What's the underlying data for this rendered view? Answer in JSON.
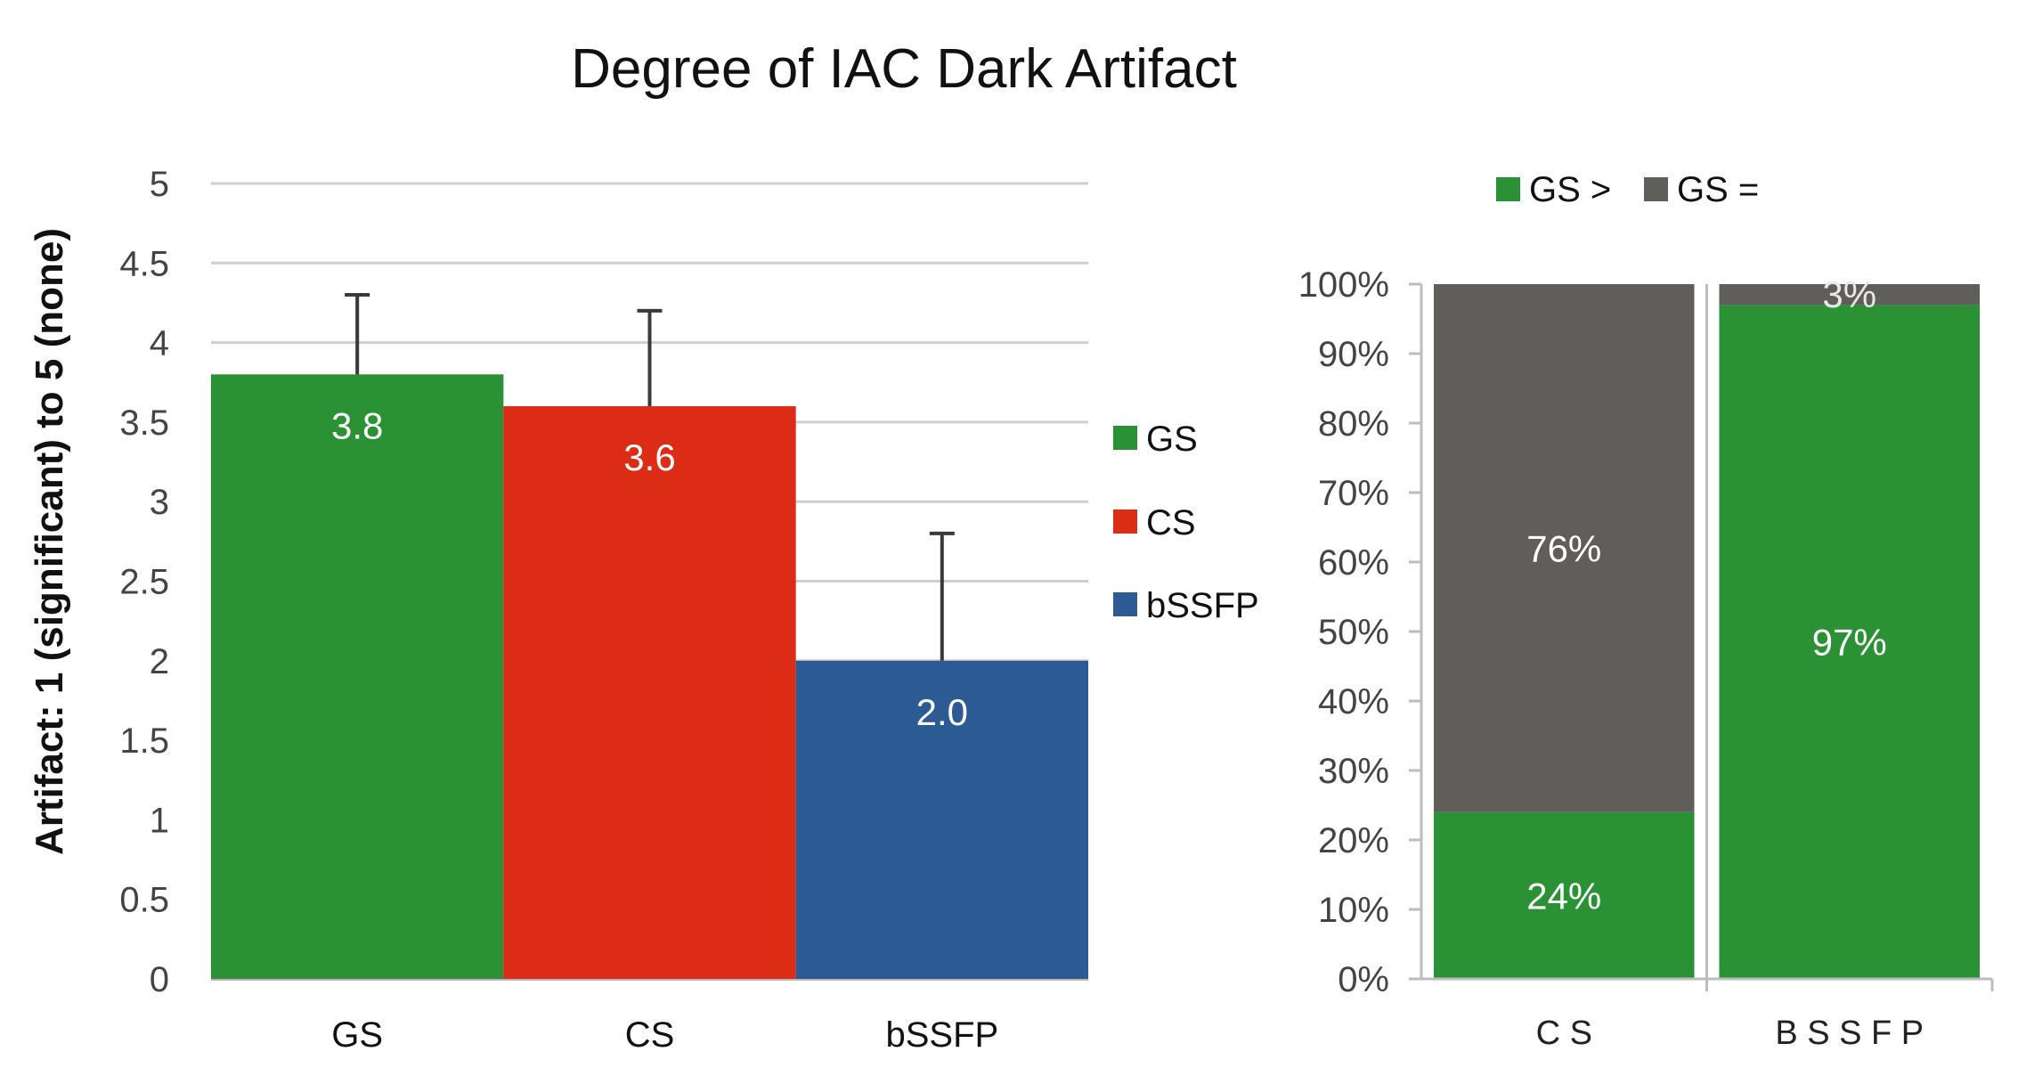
{
  "chart_data": [
    {
      "type": "bar",
      "title": "Degree of IAC Dark Artifact",
      "ylabel": "Artifact: 1 (significant) to 5 (none)",
      "xlabel": "",
      "categories": [
        "GS",
        "CS",
        "bSSFP"
      ],
      "values": [
        3.8,
        3.6,
        2.0
      ],
      "value_labels": [
        "3.8",
        "3.6",
        "2.0"
      ],
      "error_upper": [
        4.3,
        4.2,
        2.8
      ],
      "colors": [
        "#2a9134",
        "#dc2c16",
        "#2c5a93"
      ],
      "ylim": [
        0,
        5
      ],
      "yticks": [
        0,
        0.5,
        1,
        1.5,
        2,
        2.5,
        3,
        3.5,
        4,
        4.5,
        5
      ],
      "ytick_labels": [
        "0",
        "0.5",
        "1",
        "1.5",
        "2",
        "2.5",
        "3",
        "3.5",
        "4",
        "4.5",
        "5"
      ],
      "grid": true,
      "legend": {
        "placement": "right",
        "entries": [
          "GS",
          "CS",
          "bSSFP"
        ]
      }
    },
    {
      "type": "bar",
      "stacked": true,
      "percent": true,
      "categories": [
        "CS",
        "BSSFP"
      ],
      "category_labels": [
        "C S",
        "B S S F P"
      ],
      "series": [
        {
          "name": "GS >",
          "color": "#2a9134",
          "values": [
            24,
            97
          ],
          "labels": [
            "24%",
            "97%"
          ]
        },
        {
          "name": "GS =",
          "color": "#5f5e5a",
          "values": [
            76,
            3
          ],
          "labels": [
            "76%",
            "3%"
          ]
        }
      ],
      "ylim": [
        0,
        100
      ],
      "ytick_labels": [
        "0%",
        "10%",
        "20%",
        "30%",
        "40%",
        "50%",
        "60%",
        "70%",
        "80%",
        "90%",
        "100%"
      ],
      "grid": false,
      "legend": {
        "placement": "top"
      }
    }
  ]
}
